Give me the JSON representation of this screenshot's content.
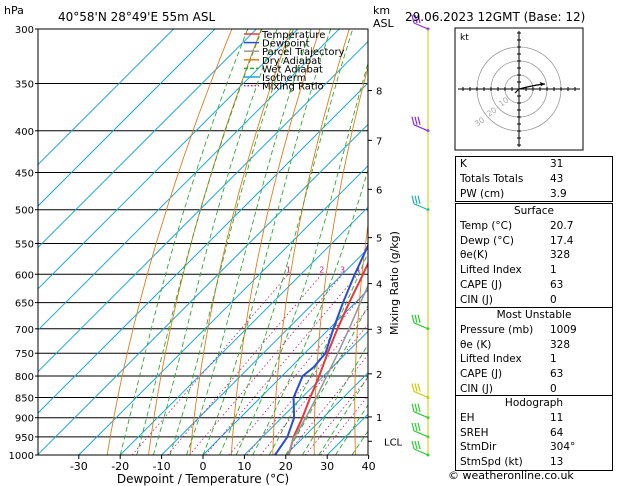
{
  "header": {
    "pressure_unit": "hPa",
    "location": "40°58'N  28°49'E  55m  ASL",
    "km_label": "km",
    "asl_label": "ASL",
    "datetime": "29.06.2023  12GMT  (Base: 12)"
  },
  "legend": {
    "items": [
      {
        "label": "Temperature",
        "color": "#e8383d"
      },
      {
        "label": "Dewpoint",
        "color": "#2a4ed0"
      },
      {
        "label": "Parcel Trajectory",
        "color": "#999999"
      },
      {
        "label": "Dry Adiabat",
        "color": "#e07d1a"
      },
      {
        "label": "Wet Adiabat",
        "color": "#2eaa2e"
      },
      {
        "label": "Isotherm",
        "color": "#1ca6d8"
      },
      {
        "label": "Mixing Ratio",
        "color": "#c2187a"
      }
    ]
  },
  "chart_data": {
    "type": "line",
    "xlabel": "Dewpoint / Temperature (°C)",
    "ylabel_right": "Mixing Ratio (g/kg)",
    "x_ticks": [
      -30,
      -20,
      -10,
      0,
      10,
      20,
      30,
      40
    ],
    "pressure_levels": [
      300,
      350,
      400,
      450,
      500,
      550,
      600,
      650,
      700,
      750,
      800,
      850,
      900,
      950,
      1000
    ],
    "km_ticks": [
      {
        "label": "8",
        "p": 357
      },
      {
        "label": "7",
        "p": 411
      },
      {
        "label": "6",
        "p": 472
      },
      {
        "label": "5",
        "p": 541
      },
      {
        "label": "4",
        "p": 616
      },
      {
        "label": "3",
        "p": 701
      },
      {
        "label": "2",
        "p": 795
      },
      {
        "label": "1",
        "p": 898
      },
      {
        "label": "LCL",
        "p": 962
      }
    ],
    "mixing_ratio_labels": [
      {
        "label": "1",
        "w": 1
      },
      {
        "label": "2",
        "w": 2
      },
      {
        "label": "3",
        "w": 3
      },
      {
        "label": "4",
        "w": 4
      },
      {
        "label": "6",
        "w": 6
      },
      {
        "label": "8",
        "w": 8
      },
      {
        "label": "10",
        "w": 10
      },
      {
        "label": "15",
        "w": 15
      },
      {
        "label": "20",
        "w": 20
      },
      {
        "label": "25",
        "w": 25
      }
    ],
    "series": [
      {
        "name": "Temperature",
        "color": "#e8383d",
        "points": [
          [
            1000,
            20.7
          ],
          [
            950,
            17.5
          ],
          [
            900,
            15
          ],
          [
            850,
            12
          ],
          [
            800,
            9
          ],
          [
            750,
            5.5
          ],
          [
            700,
            2
          ],
          [
            650,
            -1.5
          ],
          [
            600,
            -5
          ],
          [
            550,
            -9
          ],
          [
            500,
            -13.5
          ],
          [
            450,
            -19
          ],
          [
            400,
            -25
          ],
          [
            350,
            -32
          ],
          [
            300,
            -41
          ]
        ]
      },
      {
        "name": "Dewpoint",
        "color": "#2a4ed0",
        "points": [
          [
            1000,
            17.4
          ],
          [
            950,
            16
          ],
          [
            900,
            13
          ],
          [
            850,
            8
          ],
          [
            800,
            5
          ],
          [
            780,
            5.5
          ],
          [
            750,
            5
          ],
          [
            700,
            1
          ],
          [
            650,
            -3
          ],
          [
            600,
            -7
          ],
          [
            550,
            -11
          ],
          [
            500,
            -16
          ],
          [
            450,
            -23
          ],
          [
            400,
            -35
          ],
          [
            350,
            -45
          ],
          [
            300,
            -53
          ]
        ]
      },
      {
        "name": "Parcel Trajectory",
        "color": "#999999",
        "points": [
          [
            1000,
            20.7
          ],
          [
            962,
            18.2
          ],
          [
            900,
            15.8
          ],
          [
            850,
            13.5
          ],
          [
            800,
            10.8
          ],
          [
            750,
            8
          ],
          [
            700,
            4.8
          ],
          [
            650,
            1.2
          ],
          [
            600,
            -2.5
          ],
          [
            550,
            -6.8
          ],
          [
            500,
            -11.5
          ],
          [
            450,
            -17
          ],
          [
            400,
            -23.5
          ],
          [
            350,
            -31
          ],
          [
            300,
            -40
          ]
        ]
      }
    ],
    "wind_barbs": [
      {
        "p": 300,
        "color": "#8a2be2"
      },
      {
        "p": 400,
        "color": "#8a2be2"
      },
      {
        "p": 500,
        "color": "#20b2aa"
      },
      {
        "p": 700,
        "color": "#32cd32"
      },
      {
        "p": 850,
        "color": "#cccc00"
      },
      {
        "p": 900,
        "color": "#32cd32"
      },
      {
        "p": 950,
        "color": "#32cd32"
      },
      {
        "p": 1000,
        "color": "#32cd32"
      }
    ]
  },
  "hodograph": {
    "unit_label": "kt",
    "ring_labels": [
      "10",
      "20",
      "30"
    ]
  },
  "indices": [
    {
      "label": "K",
      "value": "31"
    },
    {
      "label": "Totals Totals",
      "value": "43"
    },
    {
      "label": "PW (cm)",
      "value": "3.9"
    }
  ],
  "surface": {
    "title": "Surface",
    "rows": [
      {
        "label": "Temp (°C)",
        "value": "20.7"
      },
      {
        "label": "Dewp (°C)",
        "value": "17.4"
      },
      {
        "label": "θe(K)",
        "value": "328"
      },
      {
        "label": "Lifted Index",
        "value": "1"
      },
      {
        "label": "CAPE (J)",
        "value": "63"
      },
      {
        "label": "CIN (J)",
        "value": "0"
      }
    ]
  },
  "most_unstable": {
    "title": "Most Unstable",
    "rows": [
      {
        "label": "Pressure (mb)",
        "value": "1009"
      },
      {
        "label": "θe (K)",
        "value": "328"
      },
      {
        "label": "Lifted Index",
        "value": "1"
      },
      {
        "label": "CAPE (J)",
        "value": "63"
      },
      {
        "label": "CIN (J)",
        "value": "0"
      }
    ]
  },
  "hodograph_table": {
    "title": "Hodograph",
    "rows": [
      {
        "label": "EH",
        "value": "11"
      },
      {
        "label": "SREH",
        "value": "64"
      },
      {
        "label": "StmDir",
        "value": "304°"
      },
      {
        "label": "StmSpd (kt)",
        "value": "13"
      }
    ]
  },
  "footer": {
    "copyright": "© weatheronline.co.uk"
  }
}
